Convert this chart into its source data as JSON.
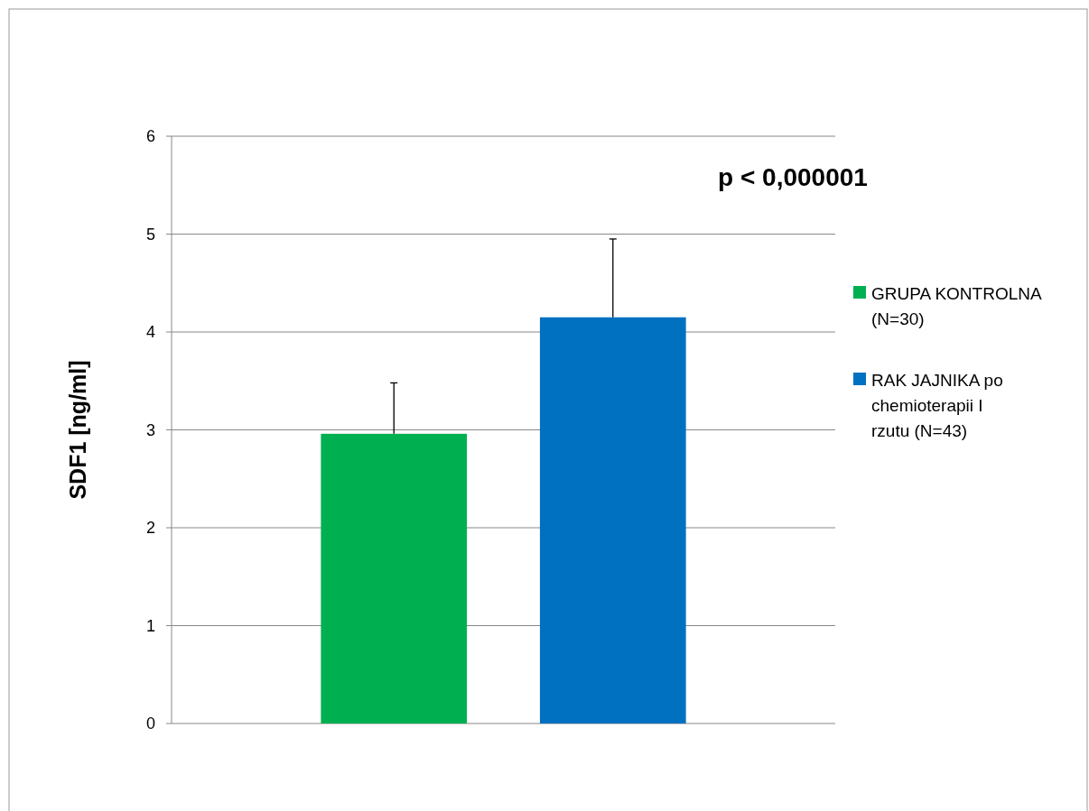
{
  "chart_data": {
    "type": "bar",
    "ylabel": "SDF1 [ng/ml]",
    "annotations": [
      "p < 0,000001"
    ],
    "categories": [
      null
    ],
    "series": [
      {
        "name": "GRUPA KONTROLNA (N=30)",
        "color": "#00b050",
        "values": [
          2.96
        ],
        "errors": [
          [
            2.96,
            3.48
          ]
        ]
      },
      {
        "name": "RAK JAJNIKA po chemioterapii I rzutu (N=43)",
        "color": "#0070c0",
        "values": [
          4.15
        ],
        "errors": [
          [
            4.15,
            4.95
          ]
        ]
      }
    ],
    "ylim": [
      0,
      6
    ],
    "yticks": [
      0,
      1,
      2,
      3,
      4,
      5,
      6
    ],
    "grid": "y",
    "legend": "right"
  }
}
